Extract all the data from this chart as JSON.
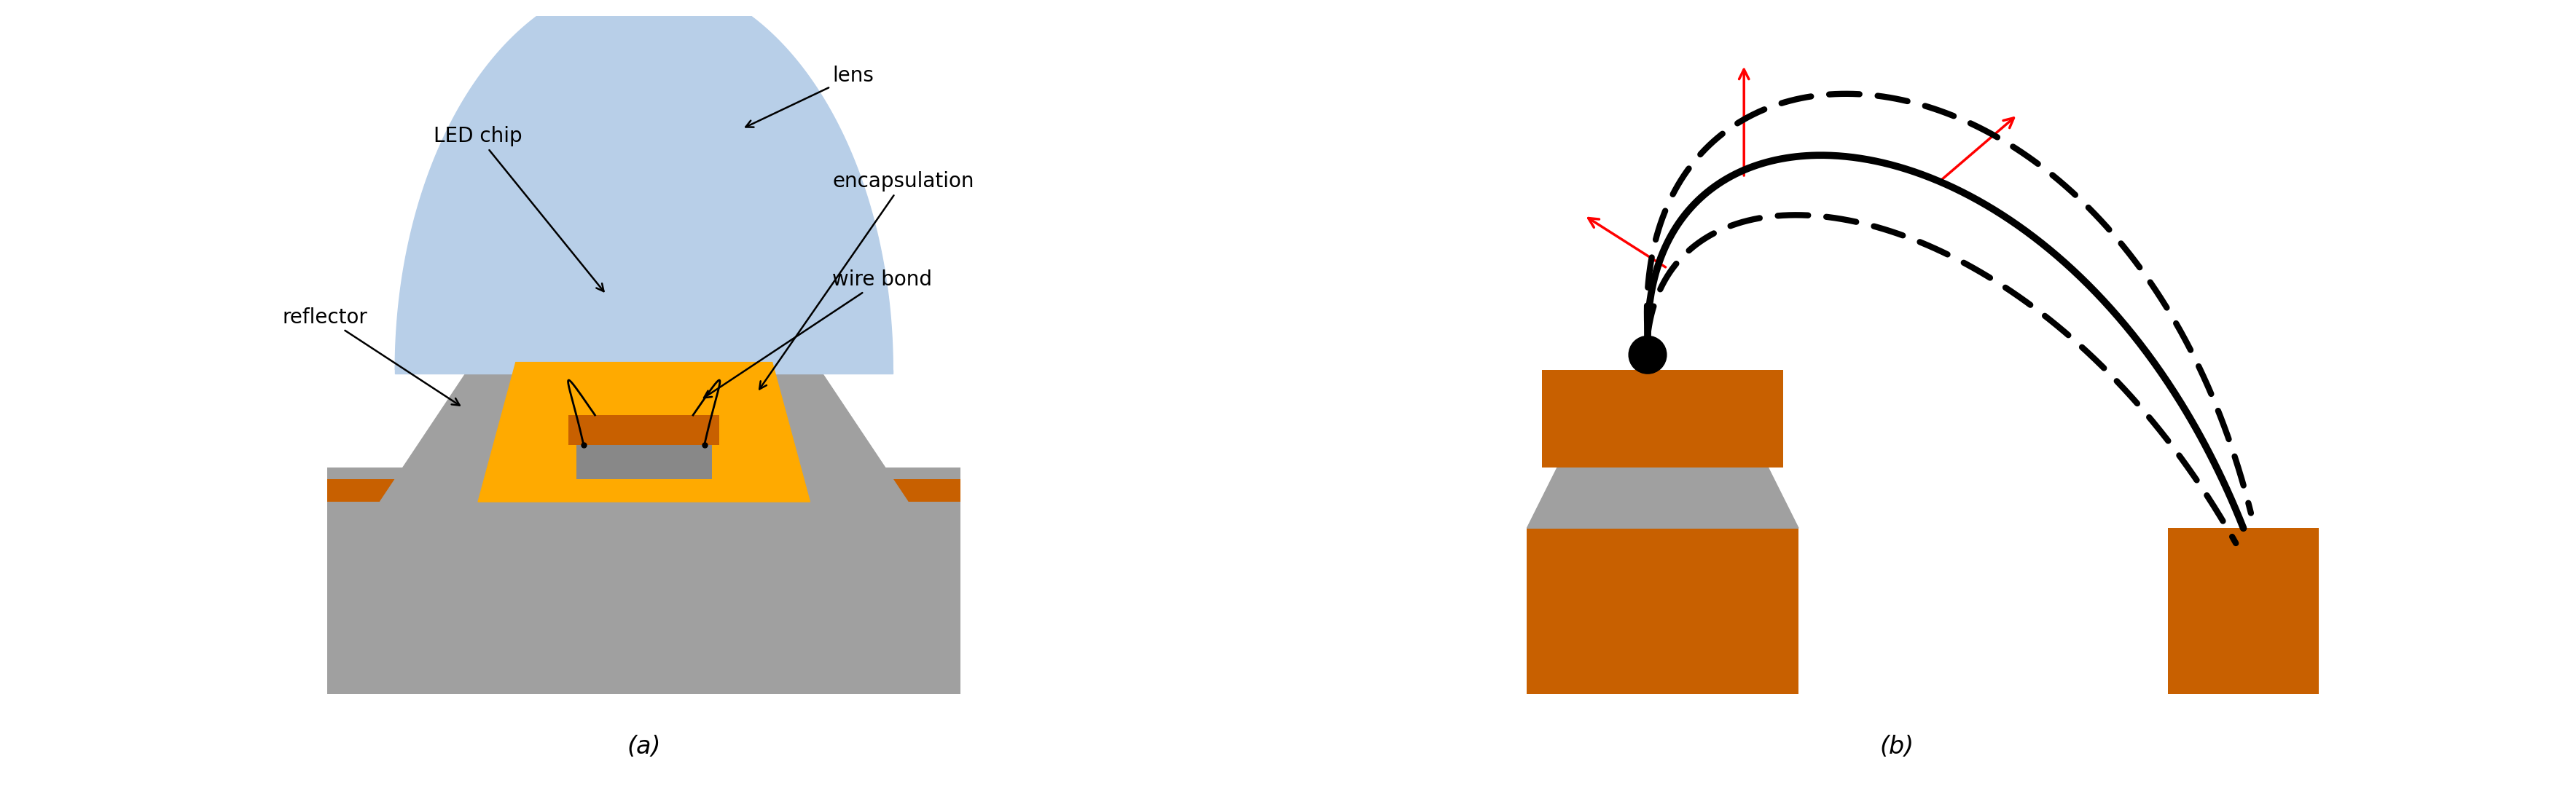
{
  "fig_width": 35.35,
  "fig_height": 10.78,
  "bg_color": "#ffffff",
  "gray_color": "#a0a0a0",
  "dark_gray_color": "#888888",
  "orange_color": "#c86000",
  "gold_color": "#ffaa00",
  "blue_lens_color": "#b8cfe8",
  "black_color": "#000000",
  "red_color": "#ff0000",
  "label_a": "(a)",
  "label_b": "(b)",
  "text_LED_chip": "LED chip",
  "text_lens": "lens",
  "text_encapsulation": "encapsulation",
  "text_wire_bond": "wire bond",
  "text_reflector": "reflector",
  "font_size_labels": 20,
  "font_size_sub": 24
}
